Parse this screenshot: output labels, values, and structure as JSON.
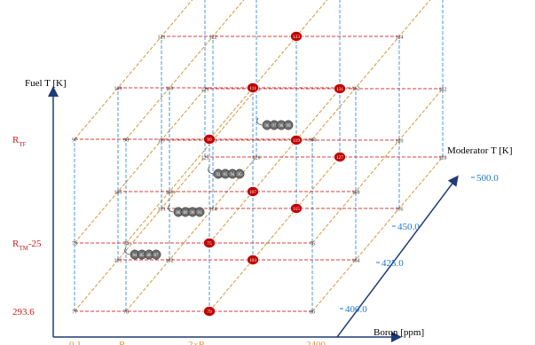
{
  "axes": {
    "fuel_label": "Fuel T [K]",
    "moderator_label": "Moderator T [K]",
    "boron_label": "Boron [ppm]",
    "fuel_ticks": [
      {
        "id": "293.6",
        "text": "293.6",
        "sub": ""
      },
      {
        "id": "rtm",
        "text": "R",
        "sub": "TM",
        "tail": "-25"
      },
      {
        "id": "rtf",
        "text": "R",
        "sub": "TF",
        "tail": ""
      }
    ],
    "moderator_ticks": [
      "400.0",
      "425.0",
      "450.0",
      "500.0"
    ],
    "boron_ticks": [
      {
        "id": "b0",
        "text": "0.1",
        "sub": ""
      },
      {
        "id": "bR",
        "text": "R",
        "sub": "b",
        "tail": ""
      },
      {
        "id": "b2R",
        "text": "2×R",
        "sub": "b",
        "tail": ""
      },
      {
        "id": "b2400",
        "text": "2400",
        "sub": ""
      }
    ]
  },
  "colors": {
    "grid_red": "#d43f3a",
    "grid_blue": "#3a8fd6",
    "grid_orange": "#d9953a",
    "axis_navy": "#1f3a78",
    "label_red": "#c81e1e",
    "label_blue": "#1f78c8",
    "marker_red": "#c00000",
    "marker_gray": "#6e6e6e"
  },
  "nodes": {
    "front_bottom": [
      "77",
      "78",
      "79",
      "80"
    ],
    "front_mid_low": [
      "73",
      "74",
      "75",
      "76"
    ],
    "front_top": [
      "97",
      "98",
      "99",
      "100"
    ],
    "layer2_bottom": [
      "101",
      "102",
      "103",
      "104"
    ],
    "layer2_mid": [
      "105",
      "106",
      "107",
      "108"
    ],
    "layer2_top": [
      "109",
      "110",
      "111",
      "112"
    ],
    "layer3_bottom": [
      "113",
      "114",
      "115",
      "116"
    ],
    "layer3_mid": [
      "117",
      "118",
      "119",
      "120"
    ],
    "layer3_top": [
      "121",
      "122",
      "123",
      "124"
    ],
    "back_bottom": [
      "125",
      "126",
      "127",
      "128"
    ],
    "back_mid": [
      "129",
      "130",
      "131",
      "132"
    ],
    "back_top": [
      "133",
      "134",
      "135",
      "136"
    ]
  },
  "gray_clusters": [
    [
      "84",
      "85",
      "86",
      "87"
    ],
    [
      "88",
      "89",
      "90",
      "91"
    ],
    [
      "92",
      "93",
      "94",
      "95"
    ],
    [
      "96",
      "97",
      "98",
      "99"
    ]
  ]
}
